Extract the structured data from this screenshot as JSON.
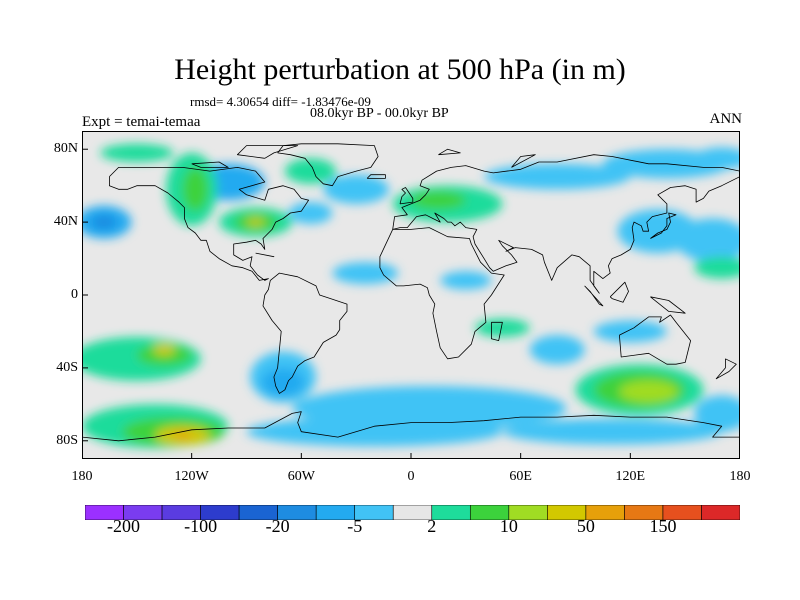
{
  "title": "Height perturbation at 500 hPa (in m)",
  "stats": "rmsd= 4.30654 diff= -1.83476e-09",
  "period": "08.0kyr BP - 00.0kyr BP",
  "experiment": "Expt = temai-temaa",
  "season": "ANN",
  "map": {
    "projection": "cylindrical-equidistant",
    "lon_range": [
      -180,
      180
    ],
    "lat_range": [
      -90,
      90
    ],
    "background_color": "#e8e8e8",
    "coastline_color": "#000000",
    "y_ticks": [
      {
        "label": "80N",
        "lat": 80
      },
      {
        "label": "40N",
        "lat": 40
      },
      {
        "label": "0",
        "lat": 0
      },
      {
        "label": "40S",
        "lat": -40
      },
      {
        "label": "80S",
        "lat": -80
      }
    ],
    "x_ticks": [
      {
        "label": "180",
        "lon": -180
      },
      {
        "label": "120W",
        "lon": -120
      },
      {
        "label": "60W",
        "lon": -60
      },
      {
        "label": "0",
        "lon": 0
      },
      {
        "label": "60E",
        "lon": 60
      },
      {
        "label": "120E",
        "lon": 120
      },
      {
        "label": "180",
        "lon": 180
      }
    ]
  },
  "colorbar": {
    "colors": [
      "#9b30ff",
      "#7a3cf0",
      "#5a3ce0",
      "#2d3ccd",
      "#1a64d2",
      "#1e8ce1",
      "#23aaf0",
      "#41c3f5",
      "#e6e6e6",
      "#1edc9b",
      "#3cd23c",
      "#a0dc23",
      "#d2c800",
      "#e6a00a",
      "#e67814",
      "#e6501e",
      "#dc2828"
    ],
    "labels": [
      {
        "text": "-200",
        "boundary": 1
      },
      {
        "text": "-100",
        "boundary": 3
      },
      {
        "text": "-20",
        "boundary": 5
      },
      {
        "text": "-5",
        "boundary": 7
      },
      {
        "text": "2",
        "boundary": 9
      },
      {
        "text": "10",
        "boundary": 11
      },
      {
        "text": "50",
        "boundary": 13
      },
      {
        "text": "150",
        "boundary": 15
      }
    ]
  },
  "anomaly_regions": [
    {
      "lon": -100,
      "lat": 62,
      "rlon": 20,
      "rlat": 10,
      "level": 6
    },
    {
      "lon": -30,
      "lat": 58,
      "rlon": 18,
      "rlat": 8,
      "level": 7
    },
    {
      "lon": -55,
      "lat": 45,
      "rlon": 12,
      "rlat": 6,
      "level": 7
    },
    {
      "lon": -168,
      "lat": 40,
      "rlon": 15,
      "rlat": 9,
      "level": 6
    },
    {
      "lon": -168,
      "lat": 40,
      "rlon": 7,
      "rlat": 4,
      "level": 5
    },
    {
      "lon": 165,
      "lat": 30,
      "rlon": 20,
      "rlat": 12,
      "level": 7
    },
    {
      "lon": 135,
      "lat": 35,
      "rlon": 22,
      "rlat": 12,
      "level": 7
    },
    {
      "lon": -25,
      "lat": 12,
      "rlon": 18,
      "rlat": 6,
      "level": 7
    },
    {
      "lon": 30,
      "lat": 8,
      "rlon": 14,
      "rlat": 5,
      "level": 7
    },
    {
      "lon": 80,
      "lat": 65,
      "rlon": 40,
      "rlat": 7,
      "level": 7
    },
    {
      "lon": 140,
      "lat": 72,
      "rlon": 35,
      "rlat": 8,
      "level": 7
    },
    {
      "lon": 170,
      "lat": 75,
      "rlon": 15,
      "rlat": 6,
      "level": 7
    },
    {
      "lon": 80,
      "lat": -30,
      "rlon": 15,
      "rlat": 8,
      "level": 7
    },
    {
      "lon": 120,
      "lat": -20,
      "rlon": 20,
      "rlat": 6,
      "level": 7
    },
    {
      "lon": 10,
      "lat": -62,
      "rlon": 75,
      "rlat": 12,
      "level": 7
    },
    {
      "lon": -70,
      "lat": -45,
      "rlon": 18,
      "rlat": 14,
      "level": 7
    },
    {
      "lon": -70,
      "lat": -48,
      "rlon": 12,
      "rlat": 8,
      "level": 6
    },
    {
      "lon": -20,
      "lat": -75,
      "rlon": 70,
      "rlat": 8,
      "level": 7
    },
    {
      "lon": 110,
      "lat": -75,
      "rlon": 60,
      "rlat": 7,
      "level": 7
    },
    {
      "lon": 170,
      "lat": -65,
      "rlon": 15,
      "rlat": 10,
      "level": 7
    },
    {
      "lon": -150,
      "lat": -35,
      "rlon": 35,
      "rlat": 12,
      "level": 9
    },
    {
      "lon": -135,
      "lat": -33,
      "rlon": 15,
      "rlat": 6,
      "level": 10
    },
    {
      "lon": -135,
      "lat": -30,
      "rlon": 6,
      "rlat": 3,
      "level": 12
    },
    {
      "lon": -140,
      "lat": -72,
      "rlon": 40,
      "rlat": 12,
      "level": 9
    },
    {
      "lon": -130,
      "lat": -75,
      "rlon": 28,
      "rlat": 8,
      "level": 10
    },
    {
      "lon": -125,
      "lat": -77,
      "rlon": 15,
      "rlat": 5,
      "level": 12
    },
    {
      "lon": -125,
      "lat": -77,
      "rlon": 5,
      "rlat": 2,
      "level": 13
    },
    {
      "lon": 125,
      "lat": -52,
      "rlon": 35,
      "rlat": 14,
      "level": 9
    },
    {
      "lon": 125,
      "lat": -52,
      "rlon": 25,
      "rlat": 10,
      "level": 10
    },
    {
      "lon": 130,
      "lat": -53,
      "rlon": 16,
      "rlat": 6,
      "level": 11
    },
    {
      "lon": -55,
      "lat": 68,
      "rlon": 14,
      "rlat": 7,
      "level": 9
    },
    {
      "lon": -120,
      "lat": 58,
      "rlon": 14,
      "rlat": 20,
      "level": 9
    },
    {
      "lon": -118,
      "lat": 58,
      "rlon": 7,
      "rlat": 12,
      "level": 10
    },
    {
      "lon": -85,
      "lat": 40,
      "rlon": 20,
      "rlat": 8,
      "level": 9
    },
    {
      "lon": -85,
      "lat": 40,
      "rlon": 12,
      "rlat": 5,
      "level": 10
    },
    {
      "lon": -85,
      "lat": 40,
      "rlon": 5,
      "rlat": 2,
      "level": 12
    },
    {
      "lon": 20,
      "lat": 50,
      "rlon": 30,
      "rlat": 10,
      "level": 9
    },
    {
      "lon": 15,
      "lat": 52,
      "rlon": 15,
      "rlat": 5,
      "level": 10
    },
    {
      "lon": -150,
      "lat": 78,
      "rlon": 20,
      "rlat": 5,
      "level": 9
    },
    {
      "lon": 170,
      "lat": 15,
      "rlon": 15,
      "rlat": 6,
      "level": 9
    },
    {
      "lon": 50,
      "lat": -18,
      "rlon": 15,
      "rlat": 5,
      "level": 9
    }
  ],
  "coastlines": [
    [
      [
        -165,
        65
      ],
      [
        -160,
        70
      ],
      [
        -140,
        70
      ],
      [
        -125,
        70
      ],
      [
        -110,
        68
      ],
      [
        -95,
        70
      ],
      [
        -85,
        68
      ],
      [
        -80,
        62
      ],
      [
        -94,
        58
      ],
      [
        -90,
        55
      ],
      [
        -80,
        52
      ],
      [
        -78,
        58
      ],
      [
        -70,
        60
      ],
      [
        -64,
        58
      ],
      [
        -60,
        53
      ],
      [
        -56,
        52
      ],
      [
        -60,
        46
      ],
      [
        -66,
        45
      ],
      [
        -70,
        42
      ],
      [
        -74,
        40
      ],
      [
        -76,
        36
      ],
      [
        -81,
        31
      ],
      [
        -80,
        25
      ],
      [
        -82,
        28
      ],
      [
        -85,
        30
      ],
      [
        -90,
        29
      ],
      [
        -97,
        28
      ],
      [
        -97,
        22
      ],
      [
        -92,
        19
      ],
      [
        -87,
        21
      ],
      [
        -88,
        16
      ],
      [
        -84,
        11
      ],
      [
        -80,
        8
      ],
      [
        -78,
        9
      ],
      [
        -83,
        8
      ],
      [
        -87,
        13
      ],
      [
        -92,
        15
      ],
      [
        -98,
        16
      ],
      [
        -105,
        20
      ],
      [
        -110,
        24
      ],
      [
        -112,
        30
      ],
      [
        -115,
        30
      ],
      [
        -118,
        34
      ],
      [
        -122,
        37
      ],
      [
        -124,
        42
      ],
      [
        -124,
        48
      ],
      [
        -127,
        51
      ],
      [
        -133,
        56
      ],
      [
        -140,
        60
      ],
      [
        -150,
        60
      ],
      [
        -155,
        58
      ],
      [
        -160,
        58
      ],
      [
        -165,
        60
      ],
      [
        -165,
        65
      ]
    ],
    [
      [
        -73,
        78
      ],
      [
        -70,
        82
      ],
      [
        -60,
        83
      ],
      [
        -40,
        83
      ],
      [
        -20,
        82
      ],
      [
        -18,
        76
      ],
      [
        -22,
        70
      ],
      [
        -30,
        68
      ],
      [
        -40,
        65
      ],
      [
        -43,
        60
      ],
      [
        -48,
        61
      ],
      [
        -52,
        65
      ],
      [
        -54,
        70
      ],
      [
        -58,
        75
      ],
      [
        -66,
        77
      ],
      [
        -73,
        78
      ]
    ],
    [
      [
        -77,
        8
      ],
      [
        -72,
        12
      ],
      [
        -62,
        10
      ],
      [
        -52,
        5
      ],
      [
        -50,
        0
      ],
      [
        -44,
        -2
      ],
      [
        -35,
        -5
      ],
      [
        -35,
        -9
      ],
      [
        -39,
        -14
      ],
      [
        -39,
        -19
      ],
      [
        -41,
        -22
      ],
      [
        -48,
        -26
      ],
      [
        -53,
        -34
      ],
      [
        -58,
        -36
      ],
      [
        -62,
        -39
      ],
      [
        -65,
        -45
      ],
      [
        -67,
        -47
      ],
      [
        -69,
        -52
      ],
      [
        -72,
        -54
      ],
      [
        -74,
        -50
      ],
      [
        -75,
        -45
      ],
      [
        -73,
        -40
      ],
      [
        -72,
        -30
      ],
      [
        -71,
        -20
      ],
      [
        -76,
        -14
      ],
      [
        -81,
        -6
      ],
      [
        -80,
        0
      ],
      [
        -78,
        3
      ],
      [
        -77,
        8
      ]
    ],
    [
      [
        -10,
        36
      ],
      [
        -17,
        21
      ],
      [
        -17,
        15
      ],
      [
        -15,
        11
      ],
      [
        -8,
        5
      ],
      [
        -4,
        5
      ],
      [
        5,
        6
      ],
      [
        9,
        4
      ],
      [
        10,
        0
      ],
      [
        13,
        -5
      ],
      [
        12,
        -10
      ],
      [
        14,
        -20
      ],
      [
        16,
        -29
      ],
      [
        20,
        -35
      ],
      [
        26,
        -34
      ],
      [
        33,
        -27
      ],
      [
        35,
        -20
      ],
      [
        41,
        -15
      ],
      [
        40,
        -5
      ],
      [
        44,
        0
      ],
      [
        51,
        11
      ],
      [
        44,
        12
      ],
      [
        38,
        18
      ],
      [
        33,
        28
      ],
      [
        32,
        31
      ],
      [
        20,
        32
      ],
      [
        10,
        37
      ],
      [
        0,
        36
      ],
      [
        -10,
        36
      ]
    ],
    [
      [
        -10,
        36
      ],
      [
        -9,
        43
      ],
      [
        -2,
        44
      ],
      [
        -5,
        48
      ],
      [
        0,
        50
      ],
      [
        5,
        52
      ],
      [
        8,
        55
      ],
      [
        10,
        58
      ],
      [
        5,
        60
      ],
      [
        6,
        63
      ],
      [
        14,
        68
      ],
      [
        22,
        70
      ],
      [
        30,
        71
      ],
      [
        40,
        68
      ],
      [
        45,
        67
      ],
      [
        60,
        69
      ],
      [
        70,
        73
      ],
      [
        80,
        73
      ],
      [
        100,
        77
      ],
      [
        110,
        76
      ],
      [
        130,
        72
      ],
      [
        140,
        72
      ],
      [
        160,
        70
      ],
      [
        170,
        70
      ],
      [
        180,
        68
      ],
      [
        180,
        65
      ],
      [
        170,
        60
      ],
      [
        163,
        57
      ],
      [
        160,
        53
      ],
      [
        156,
        51
      ],
      [
        156,
        58
      ],
      [
        150,
        60
      ],
      [
        142,
        59
      ],
      [
        135,
        55
      ],
      [
        140,
        50
      ],
      [
        140,
        45
      ],
      [
        132,
        43
      ],
      [
        129,
        40
      ],
      [
        130,
        35
      ],
      [
        127,
        35
      ],
      [
        126,
        38
      ],
      [
        122,
        40
      ],
      [
        121,
        37
      ],
      [
        122,
        30
      ],
      [
        120,
        25
      ],
      [
        115,
        22
      ],
      [
        110,
        20
      ],
      [
        108,
        16
      ],
      [
        109,
        12
      ],
      [
        105,
        9
      ],
      [
        100,
        13
      ],
      [
        100,
        5
      ],
      [
        103,
        1
      ],
      [
        98,
        8
      ],
      [
        98,
        16
      ],
      [
        92,
        21
      ],
      [
        88,
        22
      ],
      [
        80,
        15
      ],
      [
        77,
        8
      ],
      [
        73,
        18
      ],
      [
        72,
        22
      ],
      [
        66,
        25
      ],
      [
        57,
        26
      ],
      [
        52,
        24
      ],
      [
        56,
        26
      ],
      [
        48,
        30
      ],
      [
        50,
        27
      ],
      [
        55,
        22
      ],
      [
        58,
        18
      ],
      [
        52,
        16
      ],
      [
        45,
        13
      ],
      [
        43,
        15
      ],
      [
        40,
        20
      ],
      [
        35,
        28
      ],
      [
        34,
        32
      ],
      [
        36,
        36
      ],
      [
        30,
        37
      ],
      [
        27,
        40
      ],
      [
        24,
        38
      ],
      [
        22,
        40
      ],
      [
        20,
        40
      ],
      [
        18,
        42
      ],
      [
        13,
        45
      ],
      [
        16,
        40
      ],
      [
        12,
        42
      ],
      [
        8,
        44
      ],
      [
        3,
        43
      ],
      [
        -2,
        37
      ],
      [
        -6,
        37
      ],
      [
        -10,
        36
      ]
    ],
    [
      [
        114,
        -22
      ],
      [
        122,
        -18
      ],
      [
        130,
        -12
      ],
      [
        137,
        -12
      ],
      [
        136,
        -15
      ],
      [
        142,
        -11
      ],
      [
        145,
        -15
      ],
      [
        153,
        -25
      ],
      [
        150,
        -37
      ],
      [
        145,
        -38
      ],
      [
        140,
        -38
      ],
      [
        135,
        -35
      ],
      [
        130,
        -32
      ],
      [
        115,
        -34
      ],
      [
        114,
        -22
      ]
    ],
    [
      [
        -180,
        -78
      ],
      [
        -160,
        -80
      ],
      [
        -140,
        -78
      ],
      [
        -120,
        -74
      ],
      [
        -100,
        -73
      ],
      [
        -80,
        -73
      ],
      [
        -65,
        -65
      ],
      [
        -60,
        -64
      ],
      [
        -62,
        -70
      ],
      [
        -60,
        -75
      ],
      [
        -40,
        -78
      ],
      [
        -20,
        -72
      ],
      [
        0,
        -70
      ],
      [
        20,
        -70
      ],
      [
        40,
        -69
      ],
      [
        60,
        -67
      ],
      [
        80,
        -67
      ],
      [
        100,
        -66
      ],
      [
        120,
        -67
      ],
      [
        140,
        -67
      ],
      [
        160,
        -70
      ],
      [
        170,
        -72
      ],
      [
        165,
        -78
      ],
      [
        180,
        -78
      ]
    ],
    [
      [
        -6,
        50
      ],
      [
        -5,
        54
      ],
      [
        -3,
        56
      ],
      [
        -5,
        58
      ],
      [
        -3,
        59
      ],
      [
        -1,
        56
      ],
      [
        1,
        53
      ],
      [
        1,
        51
      ],
      [
        -6,
        50
      ]
    ],
    [
      [
        -24,
        64
      ],
      [
        -22,
        66
      ],
      [
        -14,
        66
      ],
      [
        -14,
        64
      ],
      [
        -24,
        64
      ]
    ],
    [
      [
        131,
        31
      ],
      [
        135,
        34
      ],
      [
        140,
        36
      ],
      [
        142,
        40
      ],
      [
        141,
        45
      ],
      [
        145,
        44
      ],
      [
        140,
        42
      ],
      [
        140,
        38
      ],
      [
        137,
        34
      ],
      [
        131,
        31
      ]
    ],
    [
      [
        44,
        -15
      ],
      [
        50,
        -15
      ],
      [
        48,
        -25
      ],
      [
        44,
        -24
      ],
      [
        44,
        -15
      ]
    ],
    [
      [
        95,
        5
      ],
      [
        105,
        -6
      ],
      [
        103,
        -5
      ],
      [
        98,
        2
      ],
      [
        95,
        5
      ]
    ],
    [
      [
        109,
        -1
      ],
      [
        117,
        7
      ],
      [
        119,
        2
      ],
      [
        116,
        -4
      ],
      [
        110,
        -2
      ],
      [
        109,
        -1
      ]
    ],
    [
      [
        131,
        -1
      ],
      [
        141,
        -3
      ],
      [
        150,
        -10
      ],
      [
        141,
        -9
      ],
      [
        131,
        -1
      ]
    ],
    [
      [
        172,
        -35
      ],
      [
        178,
        -38
      ],
      [
        174,
        -42
      ],
      [
        167,
        -46
      ],
      [
        172,
        -40
      ],
      [
        172,
        -35
      ]
    ],
    [
      [
        -80,
        75
      ],
      [
        -75,
        78
      ],
      [
        -62,
        82
      ],
      [
        -90,
        82
      ],
      [
        -95,
        77
      ],
      [
        -80,
        75
      ]
    ],
    [
      [
        -120,
        72
      ],
      [
        -105,
        73
      ],
      [
        -100,
        70
      ],
      [
        -115,
        70
      ],
      [
        -120,
        72
      ]
    ],
    [
      [
        -85,
        23
      ],
      [
        -75,
        21
      ],
      [
        -80,
        22
      ],
      [
        -85,
        23
      ]
    ],
    [
      [
        15,
        77
      ],
      [
        20,
        80
      ],
      [
        27,
        78
      ],
      [
        15,
        77
      ]
    ],
    [
      [
        55,
        70
      ],
      [
        60,
        76
      ],
      [
        68,
        77
      ],
      [
        55,
        70
      ]
    ]
  ]
}
